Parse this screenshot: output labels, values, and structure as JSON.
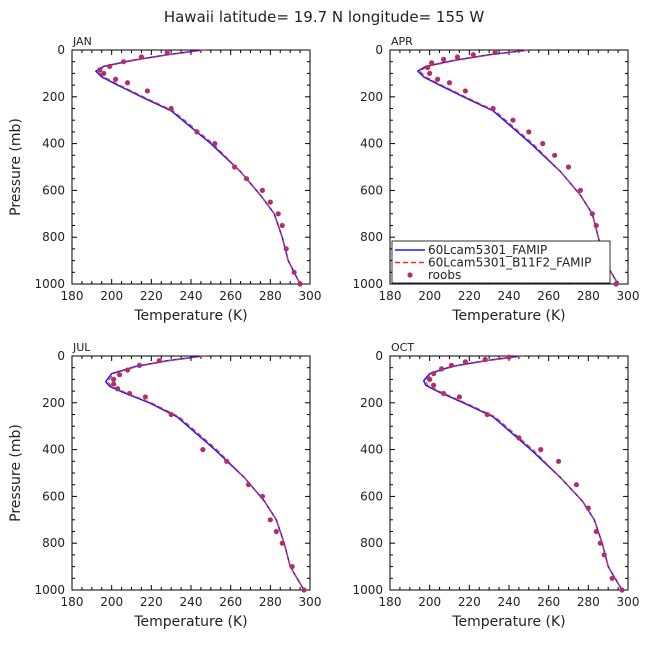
{
  "figure": {
    "title": "Hawaii  latitude= 19.7 N longitude= 155 W"
  },
  "colors": {
    "model_famip": "#1a1aff",
    "model_b11f2": "#e8302a",
    "roobs": "#b0306a",
    "axis": "#000000"
  },
  "legend": {
    "placement": "bottom-left of APR panel",
    "entries": [
      {
        "label": "60Lcam5301_FAMIP",
        "style": "solid",
        "color": "#1a1aff"
      },
      {
        "label": "60Lcam5301_B11F2_FAMIP",
        "style": "dashed",
        "color": "#e8302a"
      },
      {
        "label": "roobs",
        "style": "dot",
        "color": "#b0306a"
      }
    ]
  },
  "chart_data": [
    {
      "type": "line",
      "panel": "JAN",
      "xlabel": "Temperature (K)",
      "ylabel": "Pressure (mb)",
      "xlim": [
        180,
        300
      ],
      "ylim": [
        1000,
        0
      ],
      "xticks": [
        180,
        200,
        220,
        240,
        260,
        280,
        300
      ],
      "yticks": [
        0,
        200,
        400,
        600,
        800,
        1000
      ],
      "series": [
        {
          "name": "60Lcam5301_FAMIP",
          "style": "line",
          "x": [
            246,
            228,
            210,
            196,
            192,
            195,
            203,
            215,
            230,
            250,
            265,
            275,
            282,
            286,
            289,
            295
          ],
          "y": [
            0,
            20,
            45,
            70,
            90,
            115,
            150,
            200,
            260,
            400,
            520,
            620,
            700,
            800,
            900,
            1000
          ]
        },
        {
          "name": "60Lcam5301_B11F2_FAMIP",
          "style": "dashed",
          "x": [
            247,
            229,
            211,
            197,
            193,
            196,
            204,
            216,
            231,
            251,
            265,
            275,
            282,
            286,
            289,
            295
          ],
          "y": [
            0,
            20,
            45,
            70,
            90,
            115,
            150,
            200,
            260,
            400,
            520,
            620,
            700,
            800,
            900,
            1000
          ]
        },
        {
          "name": "roobs",
          "style": "points",
          "x": [
            228,
            215,
            206,
            199,
            194,
            196,
            202,
            208,
            218,
            230,
            243,
            252,
            262,
            268,
            276,
            280,
            284,
            286,
            288,
            292,
            295
          ],
          "y": [
            10,
            30,
            50,
            70,
            85,
            100,
            125,
            140,
            175,
            250,
            350,
            400,
            500,
            550,
            600,
            650,
            700,
            750,
            850,
            950,
            1000
          ]
        }
      ]
    },
    {
      "type": "line",
      "panel": "APR",
      "xlabel": "Temperature (K)",
      "ylabel": "",
      "xlim": [
        180,
        300
      ],
      "ylim": [
        1000,
        0
      ],
      "xticks": [
        180,
        200,
        220,
        240,
        260,
        280,
        300
      ],
      "yticks": [
        0,
        200,
        400,
        600,
        800,
        1000
      ],
      "series": [
        {
          "name": "60Lcam5301_FAMIP",
          "style": "line",
          "x": [
            250,
            230,
            212,
            198,
            194,
            197,
            205,
            217,
            232,
            251,
            266,
            276,
            282,
            285,
            288,
            295
          ],
          "y": [
            0,
            20,
            45,
            70,
            90,
            115,
            150,
            200,
            260,
            400,
            520,
            620,
            700,
            800,
            900,
            1000
          ]
        },
        {
          "name": "60Lcam5301_B11F2_FAMIP",
          "style": "dashed",
          "x": [
            250,
            231,
            213,
            199,
            195,
            198,
            206,
            218,
            233,
            252,
            266,
            276,
            282,
            285,
            288,
            295
          ],
          "y": [
            0,
            20,
            45,
            70,
            90,
            115,
            150,
            200,
            260,
            400,
            520,
            620,
            700,
            800,
            900,
            1000
          ]
        },
        {
          "name": "roobs",
          "style": "points",
          "x": [
            233,
            222,
            214,
            207,
            201,
            199,
            200,
            204,
            210,
            218,
            232,
            242,
            250,
            257,
            263,
            270,
            276,
            282,
            284,
            286,
            288,
            294
          ],
          "y": [
            10,
            20,
            30,
            40,
            55,
            75,
            100,
            125,
            140,
            175,
            250,
            300,
            350,
            400,
            450,
            500,
            600,
            700,
            750,
            850,
            900,
            1000
          ]
        }
      ]
    },
    {
      "type": "line",
      "panel": "JUL",
      "xlabel": "Temperature (K)",
      "ylabel": "Pressure (mb)",
      "xlim": [
        180,
        300
      ],
      "ylim": [
        1000,
        0
      ],
      "xticks": [
        180,
        200,
        220,
        240,
        260,
        280,
        300
      ],
      "yticks": [
        0,
        200,
        400,
        600,
        800,
        1000
      ],
      "series": [
        {
          "name": "60Lcam5301_FAMIP",
          "style": "line",
          "x": [
            246,
            228,
            212,
            200,
            197,
            199,
            207,
            219,
            233,
            252,
            267,
            277,
            283,
            287,
            290,
            297
          ],
          "y": [
            0,
            20,
            45,
            75,
            110,
            130,
            160,
            200,
            260,
            400,
            520,
            620,
            700,
            800,
            900,
            1000
          ]
        },
        {
          "name": "60Lcam5301_B11F2_FAMIP",
          "style": "dashed",
          "x": [
            247,
            229,
            213,
            201,
            198,
            200,
            208,
            220,
            234,
            253,
            267,
            277,
            283,
            287,
            290,
            297
          ],
          "y": [
            0,
            20,
            45,
            75,
            110,
            130,
            160,
            200,
            260,
            400,
            520,
            620,
            700,
            800,
            900,
            1000
          ]
        },
        {
          "name": "roobs",
          "style": "points",
          "x": [
            224,
            214,
            208,
            204,
            201,
            201,
            203,
            209,
            217,
            230,
            246,
            258,
            269,
            276,
            280,
            283,
            286,
            291,
            297
          ],
          "y": [
            20,
            40,
            60,
            80,
            100,
            120,
            140,
            160,
            175,
            250,
            400,
            450,
            550,
            600,
            700,
            750,
            800,
            900,
            1000
          ]
        }
      ]
    },
    {
      "type": "line",
      "panel": "OCT",
      "xlabel": "Temperature (K)",
      "ylabel": "",
      "xlim": [
        180,
        300
      ],
      "ylim": [
        1000,
        0
      ],
      "xticks": [
        180,
        200,
        220,
        240,
        260,
        280,
        300
      ],
      "yticks": [
        0,
        200,
        400,
        600,
        800,
        1000
      ],
      "series": [
        {
          "name": "60Lcam5301_FAMIP",
          "style": "line",
          "x": [
            246,
            228,
            211,
            200,
            197,
            198,
            205,
            217,
            232,
            251,
            266,
            277,
            283,
            287,
            290,
            297
          ],
          "y": [
            0,
            20,
            45,
            75,
            105,
            125,
            155,
            200,
            260,
            400,
            520,
            620,
            700,
            800,
            900,
            1000
          ]
        },
        {
          "name": "60Lcam5301_B11F2_FAMIP",
          "style": "dashed",
          "x": [
            247,
            229,
            212,
            201,
            198,
            199,
            206,
            218,
            233,
            252,
            266,
            277,
            283,
            287,
            290,
            297
          ],
          "y": [
            0,
            20,
            45,
            75,
            105,
            125,
            155,
            200,
            260,
            400,
            520,
            620,
            700,
            800,
            900,
            1000
          ]
        },
        {
          "name": "roobs",
          "style": "points",
          "x": [
            240,
            228,
            218,
            211,
            206,
            202,
            200,
            202,
            207,
            215,
            229,
            245,
            256,
            265,
            274,
            280,
            284,
            286,
            288,
            292,
            297
          ],
          "y": [
            5,
            15,
            25,
            40,
            55,
            75,
            100,
            125,
            160,
            175,
            250,
            350,
            400,
            450,
            550,
            650,
            750,
            800,
            850,
            950,
            1000
          ]
        }
      ]
    }
  ]
}
